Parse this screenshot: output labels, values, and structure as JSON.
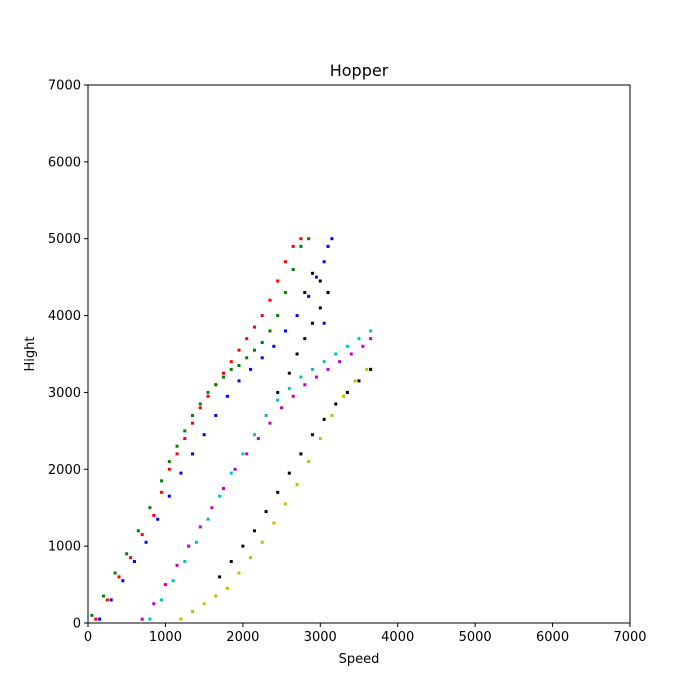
{
  "chart_data": {
    "type": "scatter",
    "title": "Hopper",
    "xlabel": "Speed",
    "ylabel": "Hight",
    "xlim": [
      0,
      7000
    ],
    "ylim": [
      0,
      7000
    ],
    "xticks": [
      "0",
      "1000",
      "2000",
      "3000",
      "4000",
      "5000",
      "6000",
      "7000"
    ],
    "yticks": [
      "0",
      "1000",
      "2000",
      "3000",
      "4000",
      "5000",
      "6000",
      "7000"
    ],
    "grid": false,
    "legend": "none",
    "marker": "square",
    "series": [
      {
        "color": "#ff0000",
        "x": [
          100,
          250,
          400,
          550,
          700,
          850,
          950,
          1050,
          1150,
          1250,
          1350,
          1450,
          1550,
          1650,
          1750,
          1850,
          1950,
          2050,
          2150,
          2250,
          2350,
          2450,
          2550,
          2650,
          2750
        ],
        "y": [
          50,
          300,
          600,
          850,
          1150,
          1400,
          1700,
          2000,
          2200,
          2400,
          2600,
          2800,
          2950,
          3100,
          3250,
          3400,
          3550,
          3700,
          3850,
          4000,
          4200,
          4450,
          4700,
          4900,
          5000
        ]
      },
      {
        "color": "#008000",
        "x": [
          50,
          200,
          350,
          500,
          650,
          800,
          950,
          1050,
          1150,
          1250,
          1350,
          1450,
          1550,
          1650,
          1750,
          1850,
          1950,
          2050,
          2150,
          2250,
          2350,
          2450,
          2550,
          2650,
          2750,
          2850
        ],
        "y": [
          100,
          350,
          650,
          900,
          1200,
          1500,
          1850,
          2100,
          2300,
          2500,
          2700,
          2850,
          3000,
          3100,
          3200,
          3300,
          3350,
          3450,
          3550,
          3650,
          3800,
          4000,
          4300,
          4600,
          4900,
          5000
        ]
      },
      {
        "color": "#0000ff",
        "x": [
          150,
          300,
          450,
          600,
          750,
          900,
          1050,
          1200,
          1350,
          1500,
          1650,
          1800,
          1950,
          2100,
          2250,
          2400,
          2550,
          2700,
          2850,
          2950,
          3050,
          3100,
          3150,
          3100,
          3050
        ],
        "y": [
          50,
          300,
          550,
          800,
          1050,
          1350,
          1650,
          1950,
          2200,
          2450,
          2700,
          2950,
          3150,
          3300,
          3450,
          3600,
          3800,
          4000,
          4250,
          4500,
          4700,
          4900,
          5000,
          4300,
          3900
        ]
      },
      {
        "color": "#00bfbf",
        "x": [
          800,
          950,
          1100,
          1250,
          1400,
          1550,
          1700,
          1850,
          2000,
          2150,
          2300,
          2450,
          2600,
          2750,
          2900,
          3050,
          3200,
          3350,
          3500,
          3650
        ],
        "y": [
          50,
          300,
          550,
          800,
          1050,
          1350,
          1650,
          1950,
          2200,
          2450,
          2700,
          2900,
          3050,
          3200,
          3300,
          3400,
          3500,
          3600,
          3700,
          3800
        ]
      },
      {
        "color": "#bf00bf",
        "x": [
          700,
          850,
          1000,
          1150,
          1300,
          1450,
          1600,
          1750,
          1900,
          2050,
          2200,
          2350,
          2500,
          2650,
          2800,
          2950,
          3100,
          3250,
          3400,
          3550,
          3650
        ],
        "y": [
          50,
          250,
          500,
          750,
          1000,
          1250,
          1500,
          1750,
          2000,
          2200,
          2400,
          2600,
          2800,
          2950,
          3100,
          3200,
          3300,
          3400,
          3500,
          3600,
          3700
        ]
      },
      {
        "color": "#bfbf00",
        "x": [
          1200,
          1350,
          1500,
          1650,
          1800,
          1950,
          2100,
          2250,
          2400,
          2550,
          2700,
          2850,
          3000,
          3150,
          3300,
          3450,
          3600
        ],
        "y": [
          50,
          150,
          250,
          350,
          450,
          650,
          850,
          1050,
          1300,
          1550,
          1800,
          2100,
          2400,
          2700,
          2950,
          3150,
          3300
        ]
      },
      {
        "color": "#000000",
        "x": [
          1700,
          1850,
          2000,
          2150,
          2300,
          2450,
          2600,
          2750,
          2900,
          3050,
          3200,
          3350,
          3500,
          3650,
          2450,
          2600,
          2700,
          2800,
          2900,
          3000,
          3100,
          3000,
          2900,
          2800
        ],
        "y": [
          600,
          800,
          1000,
          1200,
          1450,
          1700,
          1950,
          2200,
          2450,
          2650,
          2850,
          3000,
          3150,
          3300,
          3000,
          3250,
          3500,
          3700,
          3900,
          4100,
          4300,
          4450,
          4550,
          4300
        ]
      }
    ]
  }
}
